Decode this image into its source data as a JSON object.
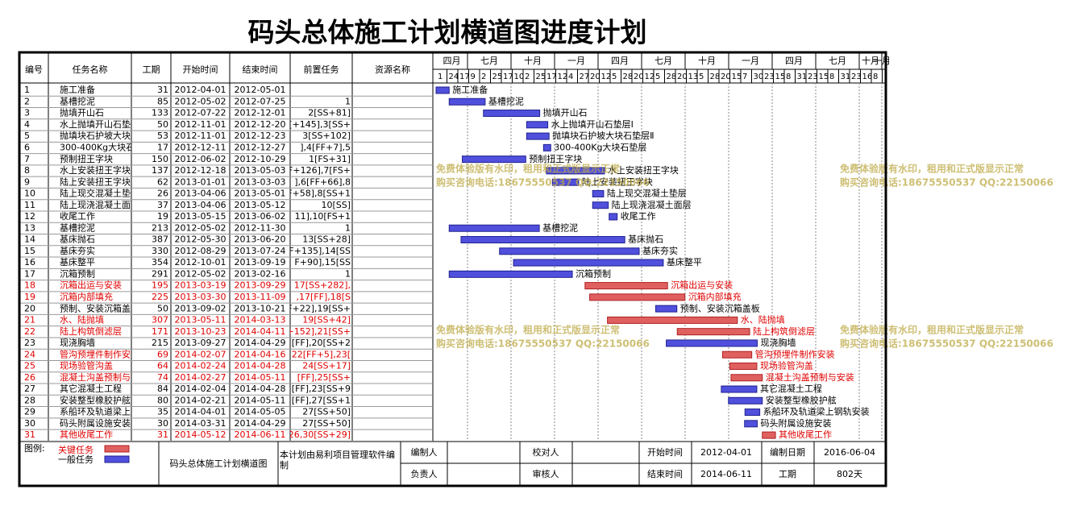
{
  "title": "码头总体施工计划横道图进度计划",
  "table": {
    "columns": [
      "编号",
      "任务名称",
      "工期",
      "开始时间",
      "结束时间",
      "前置任务",
      "资源名称"
    ],
    "rows": [
      {
        "id": "1",
        "name": "施工准备",
        "duration": 31,
        "start": "2012-04-01",
        "end": "2012-05-01",
        "critical": false
      },
      {
        "id": "2",
        "name": "基槽挖泥",
        "duration": 85,
        "start": "2012-05-02",
        "end": "2012-07-25",
        "predecessor": "1",
        "critical": false
      },
      {
        "id": "3",
        "name": "抛填开山石",
        "duration": 133,
        "start": "2012-07-22",
        "end": "2012-12-01",
        "predecessor": "2[SS+81]",
        "critical": false
      },
      {
        "id": "4",
        "name": "水上抛填开山石垫层Ⅰ",
        "duration": 50,
        "start": "2012-11-01",
        "end": "2012-12-20",
        "predecessor": "[+145],3[SS+",
        "critical": false
      },
      {
        "id": "5",
        "name": "抛填块石护坡大块石垫层Ⅱ",
        "duration": 53,
        "start": "2012-11-01",
        "end": "2012-12-23",
        "predecessor": "3[SS+102]",
        "critical": false
      },
      {
        "id": "6",
        "name": "300-400Kg大块石垫层",
        "duration": 17,
        "start": "2012-12-11",
        "end": "2012-12-27",
        "predecessor": "],4[FF+7],5",
        "critical": false
      },
      {
        "id": "7",
        "name": "预制扭王字块",
        "duration": 150,
        "start": "2012-06-02",
        "end": "2012-10-29",
        "predecessor": "1[FS+31]",
        "critical": false
      },
      {
        "id": "8",
        "name": "水上安装扭王字块",
        "duration": 137,
        "start": "2012-12-18",
        "end": "2013-05-03",
        "predecessor": "F+126],7[FS+",
        "critical": false
      },
      {
        "id": "9",
        "name": "陆上安装扭王字块",
        "duration": 62,
        "start": "2013-01-01",
        "end": "2013-03-03",
        "predecessor": "],6[FF+66],8",
        "critical": false
      },
      {
        "id": "10",
        "name": "陆上现交混凝土垫层",
        "duration": 26,
        "start": "2013-04-06",
        "end": "2013-05-01",
        "predecessor": "F+58],8[SS+1",
        "critical": false
      },
      {
        "id": "11",
        "name": "陆上现浇混凝土面层",
        "duration": 37,
        "start": "2013-04-06",
        "end": "2013-05-12",
        "predecessor": "10[SS]",
        "critical": false
      },
      {
        "id": "12",
        "name": "收尾工作",
        "duration": 19,
        "start": "2013-05-15",
        "end": "2013-06-02",
        "predecessor": "11],10[FS+1",
        "critical": false
      },
      {
        "id": "13",
        "name": "基槽挖泥",
        "duration": 213,
        "start": "2012-05-02",
        "end": "2012-11-30",
        "predecessor": "1",
        "critical": false
      },
      {
        "id": "14",
        "name": "基床抛石",
        "duration": 387,
        "start": "2012-05-30",
        "end": "2013-06-20",
        "predecessor": "13[SS+28]",
        "critical": false
      },
      {
        "id": "15",
        "name": "基床夯实",
        "duration": 330,
        "start": "2012-08-29",
        "end": "2013-07-24",
        "predecessor": "[F+135],14[SS",
        "critical": false
      },
      {
        "id": "16",
        "name": "基床整平",
        "duration": 354,
        "start": "2012-10-01",
        "end": "2013-09-19",
        "predecessor": "F+90],15[SS",
        "critical": false
      },
      {
        "id": "17",
        "name": "沉箱预制",
        "duration": 291,
        "start": "2012-05-02",
        "end": "2013-02-16",
        "predecessor": "1",
        "critical": false
      },
      {
        "id": "18",
        "name": "沉箱出运与安装",
        "duration": 195,
        "start": "2013-03-19",
        "end": "2013-09-29",
        "predecessor": "17[SS+282],",
        "critical": true
      },
      {
        "id": "19",
        "name": "沉箱内部填充",
        "duration": 225,
        "start": "2013-03-30",
        "end": "2013-11-09",
        "predecessor": ",17[FF],18[S",
        "critical": true
      },
      {
        "id": "20",
        "name": "预制、安装沉箱盖板",
        "duration": 50,
        "start": "2013-09-02",
        "end": "2013-10-21",
        "predecessor": "F+22],19[SS+",
        "critical": false
      },
      {
        "id": "21",
        "name": "水、陆抛填",
        "duration": 307,
        "start": "2013-05-11",
        "end": "2014-03-13",
        "predecessor": "19[SS+42]",
        "critical": true
      },
      {
        "id": "22",
        "name": "陆上构筑倒滤层",
        "duration": 171,
        "start": "2013-10-23",
        "end": "2014-04-11",
        "predecessor": "+152],21[SS+",
        "critical": true
      },
      {
        "id": "23",
        "name": "现浇胸墙",
        "duration": 215,
        "start": "2013-09-27",
        "end": "2014-04-29",
        "predecessor": "[FF],20[SS+2",
        "critical": false
      },
      {
        "id": "24",
        "name": "管沟预埋件制作安装",
        "duration": 69,
        "start": "2014-02-07",
        "end": "2014-04-16",
        "predecessor": "22[FF+5],23[",
        "critical": true
      },
      {
        "id": "25",
        "name": "现场验管沟盖",
        "duration": 64,
        "start": "2014-02-24",
        "end": "2014-04-28",
        "predecessor": "24[SS+17]",
        "critical": true
      },
      {
        "id": "26",
        "name": "混凝土沟盖预制与安装",
        "duration": 74,
        "start": "2014-02-27",
        "end": "2014-05-11",
        "predecessor": "[FF],25[SS+",
        "critical": true
      },
      {
        "id": "27",
        "name": "其它混凝土工程",
        "duration": 84,
        "start": "2014-02-04",
        "end": "2014-04-28",
        "predecessor": "[FF],23[SS+9",
        "critical": false
      },
      {
        "id": "28",
        "name": "安装整型橡胶护舷",
        "duration": 80,
        "start": "2014-02-21",
        "end": "2014-05-11",
        "predecessor": "[FF],27[SS+1",
        "critical": false
      },
      {
        "id": "29",
        "name": "系船环及轨道梁上钢轨安装",
        "duration": 35,
        "start": "2014-04-01",
        "end": "2014-05-05",
        "predecessor": "27[SS+50]",
        "critical": false
      },
      {
        "id": "30",
        "name": "码头附属设施安装",
        "duration": 30,
        "start": "2014-03-31",
        "end": "2014-04-29",
        "predecessor": "27[SS+50]",
        "critical": false
      },
      {
        "id": "31",
        "name": "其他收尾工作",
        "duration": 31,
        "start": "2014-05-12",
        "end": "2014-06-11",
        "predecessor": "26,30[SS+29]",
        "critical": true
      }
    ]
  },
  "timeline": {
    "quarters": [
      "四月",
      "七月",
      "十月",
      "一月",
      "四月",
      "七月",
      "十月",
      "一月",
      "四月",
      "七月",
      "十月",
      "一月"
    ],
    "days": [
      1,
      24,
      17,
      9,
      2,
      25,
      17,
      10,
      2,
      25,
      17,
      12,
      4,
      27,
      20,
      12,
      5,
      28,
      20,
      12,
      5,
      28,
      20,
      13,
      5,
      28,
      20,
      15,
      7,
      30,
      23,
      15,
      8,
      31,
      23,
      15,
      8,
      31,
      23,
      16,
      8
    ]
  },
  "watermark": {
    "line1": "免费体验版有水印，租用和正式版显示正常",
    "line2": "购买咨询电话:18675550537 QQ:22150066"
  },
  "footer": {
    "legend_label": "图例:",
    "legend_critical": "关键任务",
    "legend_normal": "一般任务",
    "chart_name": "码头总体施工计划横道图",
    "note": "本计划由易利项目管理软件编制",
    "editor": "编制人",
    "checker": "校对人",
    "owner": "负责人",
    "reviewer": "审核人",
    "start_label": "开始时间",
    "start": "2012-04-01",
    "date_label": "编制日期",
    "date": "2016-06-04",
    "end_label": "结束时间",
    "end": "2014-06-11",
    "duration_label": "工期",
    "duration": "802天"
  }
}
